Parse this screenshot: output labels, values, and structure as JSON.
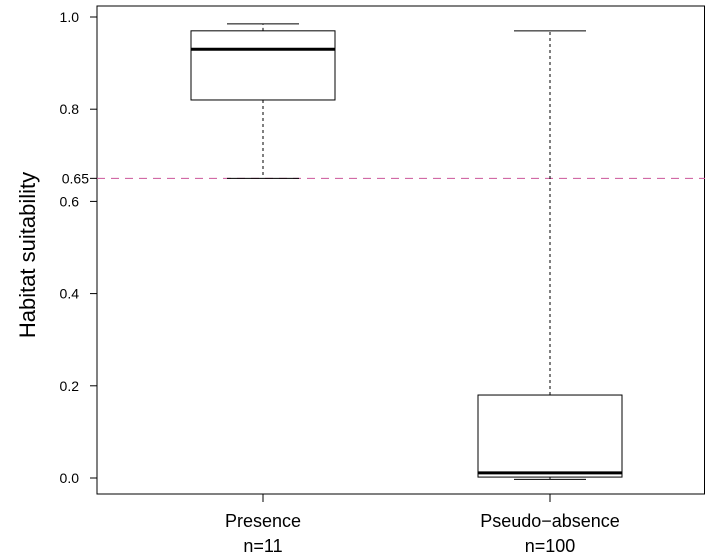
{
  "chart_data": {
    "type": "boxplot",
    "title": "",
    "xlabel": "",
    "ylabel": "Habitat suitability",
    "ylim": [
      -0.04,
      1.025
    ],
    "yticks": [
      0.0,
      0.2,
      0.4,
      0.6,
      0.8,
      1.0
    ],
    "ytick_labels": [
      "0.0",
      "0.2",
      "0.4",
      "0.6",
      "0.8",
      "1.0"
    ],
    "reference_line": {
      "value": 0.65,
      "label": "0.65",
      "color": "#cc5599",
      "style": "dashed"
    },
    "grid": false,
    "groups": [
      {
        "name": "Presence",
        "n_label": "n=11",
        "whisker_low": 0.65,
        "q1": 0.82,
        "median": 0.93,
        "q3": 0.97,
        "whisker_high": 0.985
      },
      {
        "name": "Pseudo−absence",
        "n_label": "n=100",
        "whisker_low": -0.003,
        "q1": 0.002,
        "median": 0.011,
        "q3": 0.18,
        "whisker_high": 0.97
      }
    ]
  }
}
